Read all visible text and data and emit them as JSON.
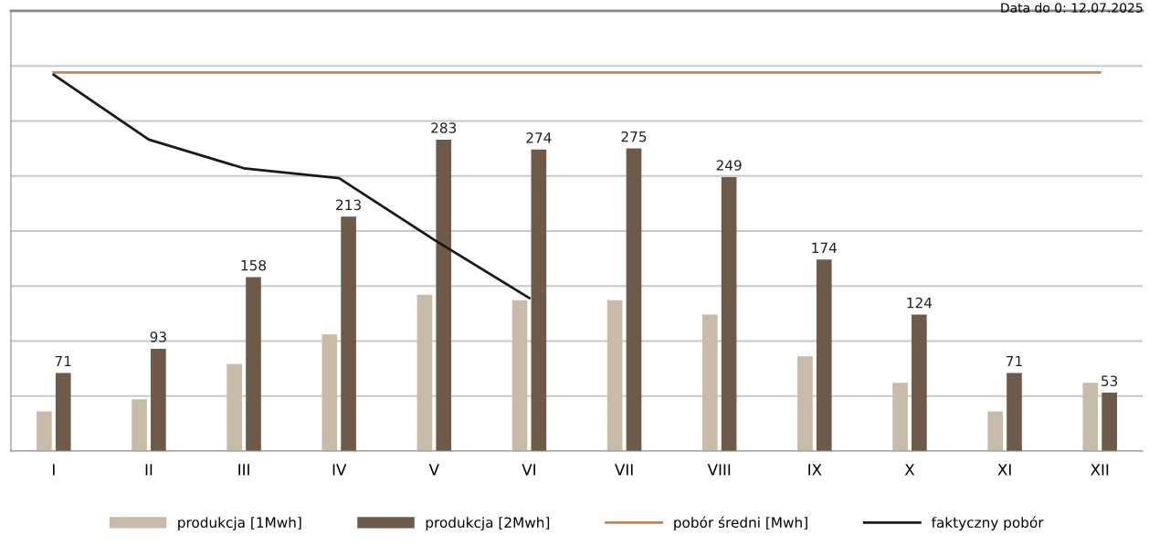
{
  "chart_data": {
    "type": "bar",
    "categories": [
      "I",
      "II",
      "III",
      "IV",
      "V",
      "VI",
      "VII",
      "VIII",
      "IX",
      "X",
      "XI",
      "XII"
    ],
    "series": [
      {
        "name": "produkcja [1Mwh]",
        "color": "#c8bca8",
        "values": [
          36,
          47,
          79,
          106,
          142,
          137,
          137,
          124,
          86,
          62,
          36,
          62
        ]
      },
      {
        "name": "produkcja [2Mwh]",
        "color": "#6e5a48",
        "values": [
          71,
          93,
          158,
          213,
          283,
          274,
          275,
          249,
          174,
          124,
          71,
          53
        ],
        "value_labels": [
          "71",
          "93",
          "158",
          "213",
          "283",
          "274",
          "275",
          "249",
          "174",
          "124",
          "71",
          "53"
        ]
      },
      {
        "name": "pobór średni [Mwh]",
        "type": "line",
        "color": "#c8825a",
        "values": [
          344,
          344,
          344,
          344,
          344,
          344,
          344,
          344,
          344,
          344,
          344,
          344
        ]
      },
      {
        "name": "faktyczny pobór",
        "type": "line",
        "color": "#1a1a1a",
        "values": [
          342,
          283,
          257,
          248,
          192,
          139,
          null,
          null,
          null,
          null,
          null,
          null
        ]
      }
    ],
    "ylim": [
      0,
      400
    ],
    "yticks": [
      0,
      50,
      100,
      150,
      200,
      250,
      300,
      350
    ],
    "tick_labels": "x",
    "grid": "y",
    "legend": "bottom",
    "annotations": [
      "Data do 0: 12.07.2025"
    ]
  }
}
